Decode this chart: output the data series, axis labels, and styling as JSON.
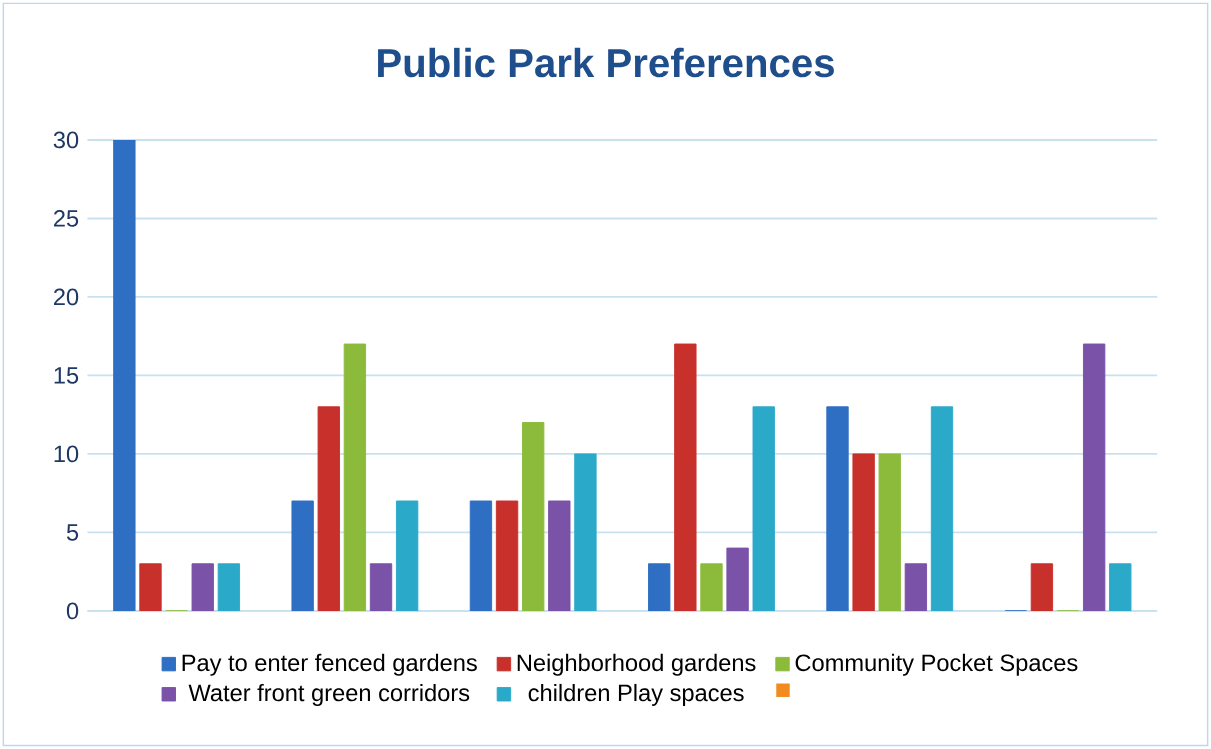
{
  "chart_data": {
    "type": "bar",
    "title": "Public Park Preferences",
    "categories": [
      null,
      null,
      null,
      null,
      null,
      null
    ],
    "series": [
      {
        "name": "Pay to enter fenced gardens",
        "color": "#2e6fc4",
        "values": [
          30,
          7,
          7,
          3,
          13,
          0
        ]
      },
      {
        "name": "Neighborhood gardens",
        "color": "#c8302b",
        "values": [
          3,
          13,
          7,
          17,
          10,
          3
        ]
      },
      {
        "name": "Community Pocket Spaces",
        "color": "#8cbb3c",
        "values": [
          0,
          17,
          12,
          3,
          10,
          0
        ]
      },
      {
        "name": "Water front green corridors",
        "color": "#7a52a8",
        "values": [
          3,
          3,
          7,
          4,
          3,
          17
        ]
      },
      {
        "name": "children Play spaces",
        "color": "#2aa9c9",
        "values": [
          3,
          7,
          10,
          13,
          13,
          3
        ]
      },
      {
        "color": "#f28a1e",
        "values": [
          null,
          null,
          null,
          null,
          null,
          null
        ]
      }
    ],
    "ylim": [
      0,
      30
    ],
    "yticks": [
      0,
      5,
      10,
      15,
      20,
      25,
      30
    ],
    "grid": "y",
    "legend": "bottom"
  }
}
